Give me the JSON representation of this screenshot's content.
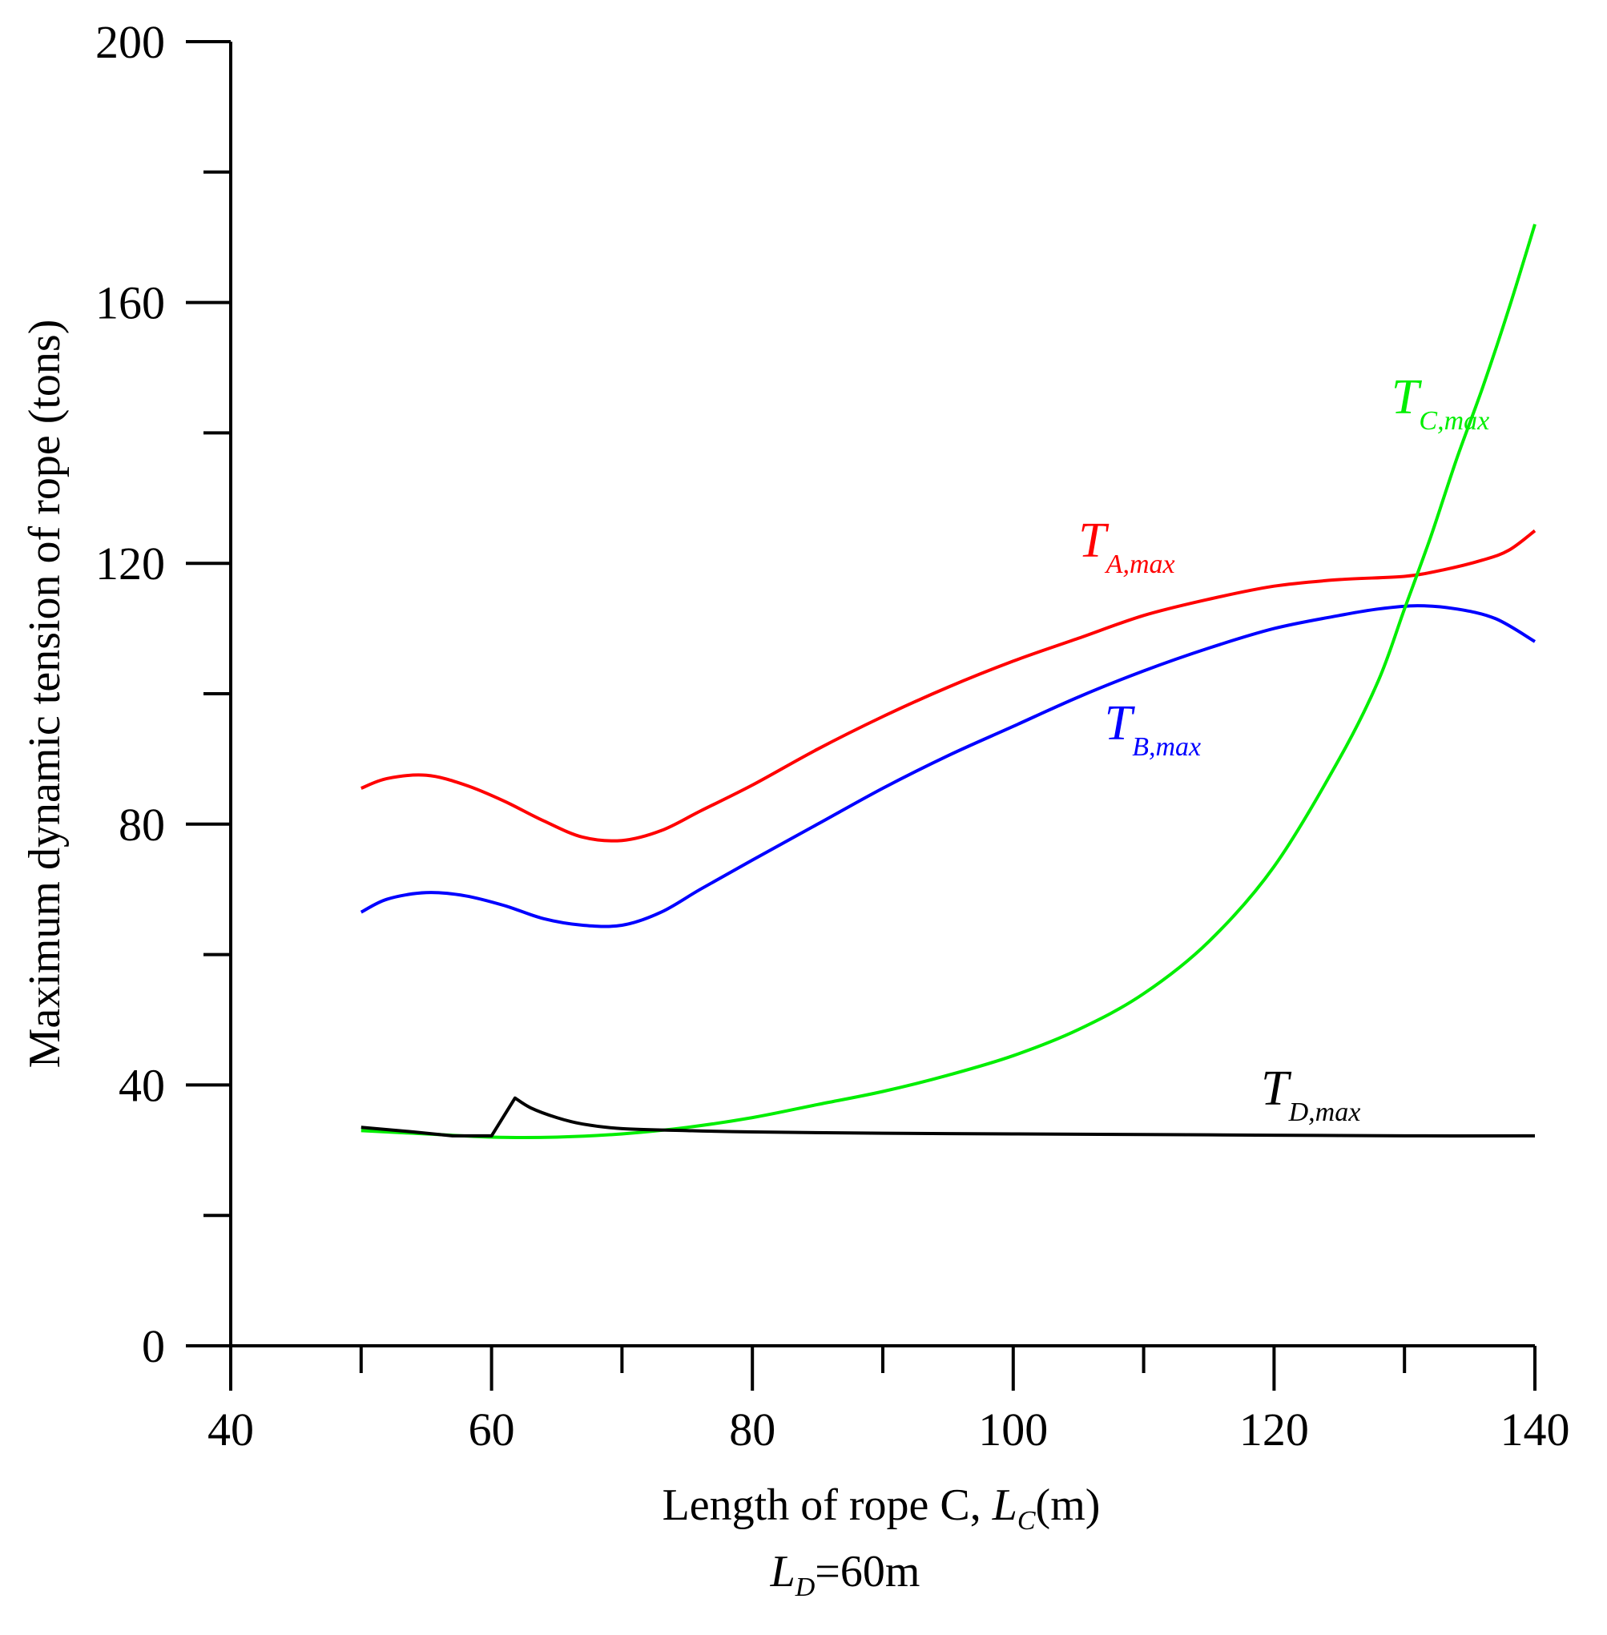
{
  "chart_data": {
    "type": "line",
    "title": "",
    "xlabel": {
      "text": "Length of rope C, ",
      "var": "L",
      "sub": "C",
      "unit": "(m)"
    },
    "ylabel": "Maximum dynamic tension of rope (tons)",
    "caption": {
      "var": "L",
      "sub": "D",
      "rest": "=60m"
    },
    "xlim": [
      40,
      140
    ],
    "ylim": [
      0,
      200
    ],
    "x_major_ticks": [
      40,
      60,
      80,
      100,
      120,
      140
    ],
    "x_minor_ticks": [
      50,
      70,
      90,
      110,
      130
    ],
    "y_major_ticks": [
      0,
      40,
      80,
      120,
      160,
      200
    ],
    "y_minor_ticks": [
      20,
      60,
      100,
      140,
      180
    ],
    "x_tick_labels": [
      "40",
      "60",
      "80",
      "100",
      "120",
      "140"
    ],
    "y_tick_labels": [
      "0",
      "40",
      "80",
      "120",
      "160",
      "200"
    ],
    "series": [
      {
        "name": "T_A,max",
        "label_main": "T",
        "label_sub": "A,max",
        "color": "#ff0000",
        "label_at": [
          105,
          121
        ],
        "x": [
          50,
          52,
          55,
          58,
          61,
          64,
          67,
          70,
          73,
          76,
          80,
          85,
          90,
          95,
          100,
          105,
          110,
          115,
          120,
          125,
          130,
          133,
          136,
          138,
          140
        ],
        "y": [
          85.5,
          87.0,
          87.5,
          86.0,
          83.5,
          80.5,
          78.0,
          77.5,
          79.0,
          82.0,
          86.0,
          91.5,
          96.5,
          101.0,
          105.0,
          108.5,
          112.0,
          114.5,
          116.5,
          117.5,
          118.0,
          119.0,
          120.5,
          122.0,
          125.0
        ]
      },
      {
        "name": "T_B,max",
        "label_main": "T",
        "label_sub": "B,max",
        "color": "#0000ff",
        "label_at": [
          107,
          93
        ],
        "x": [
          50,
          52,
          55,
          58,
          61,
          64,
          67,
          70,
          73,
          76,
          80,
          85,
          90,
          95,
          100,
          105,
          110,
          115,
          120,
          125,
          128,
          131,
          134,
          137,
          140
        ],
        "y": [
          66.5,
          68.5,
          69.5,
          69.0,
          67.5,
          65.5,
          64.5,
          64.5,
          66.5,
          70.0,
          74.5,
          80.0,
          85.5,
          90.5,
          95.0,
          99.5,
          103.5,
          107.0,
          110.0,
          112.0,
          113.0,
          113.5,
          113.0,
          111.5,
          108.0
        ]
      },
      {
        "name": "T_C,max",
        "label_main": "T",
        "label_sub": "C,max",
        "color": "#00ee00",
        "label_at": [
          129,
          143
        ],
        "x": [
          50,
          55,
          60,
          65,
          70,
          75,
          80,
          85,
          90,
          95,
          100,
          105,
          110,
          115,
          120,
          125,
          128,
          130,
          132,
          134,
          136,
          138,
          140
        ],
        "y": [
          33.0,
          32.5,
          32.0,
          32.0,
          32.5,
          33.5,
          35.0,
          37.0,
          39.0,
          41.5,
          44.5,
          48.5,
          54.0,
          62.0,
          73.5,
          90.0,
          102.0,
          113.0,
          124.0,
          136.0,
          147.0,
          159.0,
          172.0
        ]
      },
      {
        "name": "T_D,max",
        "label_main": "T",
        "label_sub": "D,max",
        "color": "#000000",
        "label_at": [
          119,
          37
        ],
        "x": [
          50,
          54,
          57,
          60,
          61.8,
          63,
          65,
          67,
          70,
          75,
          80,
          90,
          100,
          110,
          120,
          130,
          140
        ],
        "y": [
          33.5,
          32.8,
          32.2,
          32.2,
          38.0,
          36.5,
          35.0,
          34.0,
          33.3,
          33.0,
          32.8,
          32.6,
          32.5,
          32.4,
          32.3,
          32.2,
          32.2
        ]
      }
    ]
  }
}
